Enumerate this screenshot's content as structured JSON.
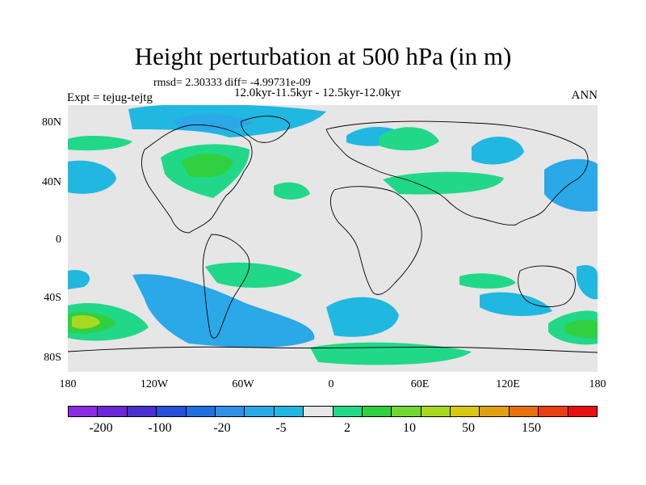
{
  "title": "Height perturbation at 500 hPa (in m)",
  "stats": "rmsd= 2.30333 diff= -4.99731e-09",
  "period": "12.0kyr-11.5kyr - 12.5kyr-12.0kyr",
  "experiment": "Expt = tejug-tejtg",
  "season": "ANN",
  "lat_labels": [
    "80N",
    "40N",
    "0",
    "40S",
    "80S"
  ],
  "lon_labels": [
    "180",
    "120W",
    "60W",
    "0",
    "60E",
    "120E",
    "180"
  ],
  "colorbar": {
    "labels": [
      "-200",
      "-100",
      "-20",
      "-5",
      "2",
      "10",
      "50",
      "150"
    ],
    "colors": [
      "#8a2be2",
      "#6a28d8",
      "#4b30d0",
      "#2650d8",
      "#1e6fe0",
      "#3090e8",
      "#2aa8e8",
      "#20b8e0",
      "#e6e6e6",
      "#20d888",
      "#30d040",
      "#70d830",
      "#a8d820",
      "#d8c810",
      "#e0a010",
      "#e87010",
      "#e84010",
      "#e81010"
    ]
  },
  "colors": {
    "land_background": "#e6e6e6",
    "neg_light": "#20b8e0",
    "neg_mid": "#2aa8e8",
    "pos_light": "#20d888",
    "pos_mid": "#30d040",
    "pos_yellow": "#a8d820"
  }
}
